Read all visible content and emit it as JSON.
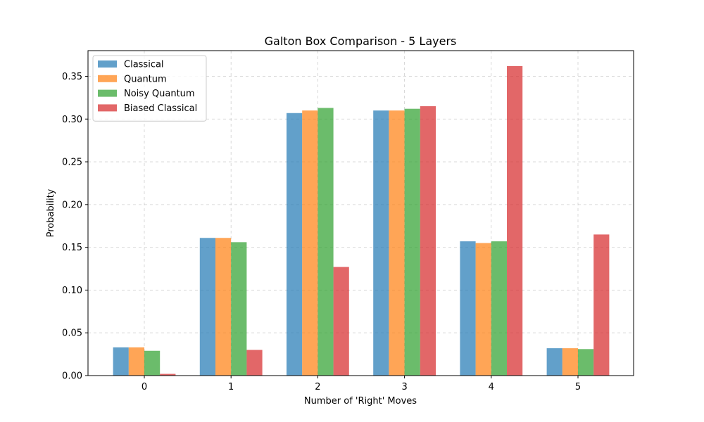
{
  "chart_data": {
    "type": "bar",
    "title": "Galton Box Comparison - 5 Layers",
    "xlabel": "Number of 'Right' Moves",
    "ylabel": "Probability",
    "categories": [
      "0",
      "1",
      "2",
      "3",
      "4",
      "5"
    ],
    "ylim": [
      0,
      0.38
    ],
    "yticks": [
      "0.00",
      "0.05",
      "0.10",
      "0.15",
      "0.20",
      "0.25",
      "0.30",
      "0.35"
    ],
    "grid": true,
    "legend_position": "top-left",
    "series": [
      {
        "name": "Classical",
        "color": "#1f77b4",
        "values": [
          0.033,
          0.161,
          0.307,
          0.31,
          0.157,
          0.032
        ]
      },
      {
        "name": "Quantum",
        "color": "#ff7f0e",
        "values": [
          0.033,
          0.161,
          0.31,
          0.31,
          0.155,
          0.032
        ]
      },
      {
        "name": "Noisy Quantum",
        "color": "#2ca02c",
        "values": [
          0.029,
          0.156,
          0.313,
          0.312,
          0.157,
          0.031
        ]
      },
      {
        "name": "Biased Classical",
        "color": "#d62728",
        "values": [
          0.002,
          0.03,
          0.127,
          0.315,
          0.362,
          0.165
        ]
      }
    ]
  }
}
